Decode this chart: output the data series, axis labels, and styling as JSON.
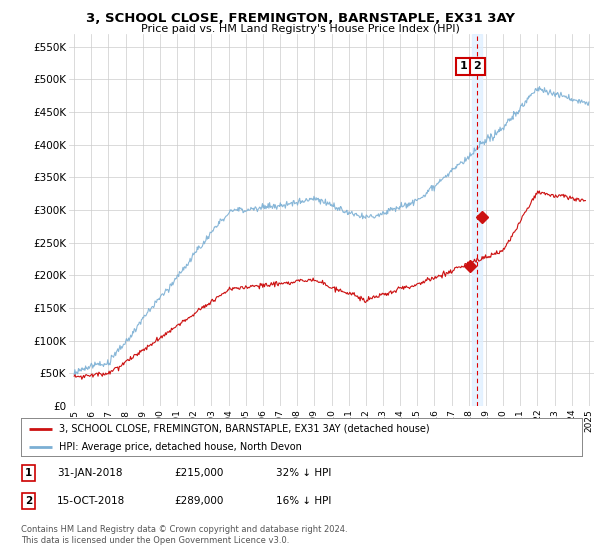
{
  "title": "3, SCHOOL CLOSE, FREMINGTON, BARNSTAPLE, EX31 3AY",
  "subtitle": "Price paid vs. HM Land Registry's House Price Index (HPI)",
  "ylim": [
    0,
    570000
  ],
  "yticks": [
    0,
    50000,
    100000,
    150000,
    200000,
    250000,
    300000,
    350000,
    400000,
    450000,
    500000,
    550000
  ],
  "ytick_labels": [
    "£0",
    "£50K",
    "£100K",
    "£150K",
    "£200K",
    "£250K",
    "£300K",
    "£350K",
    "£400K",
    "£450K",
    "£500K",
    "£550K"
  ],
  "sale1_date": 2018.08,
  "sale1_price": 215000,
  "sale2_date": 2018.79,
  "sale2_price": 289000,
  "vline_x": 2018.5,
  "hpi_color": "#7bafd4",
  "price_color": "#cc1111",
  "vline_color": "#dd0000",
  "vband_color": "#ddeeff",
  "background_color": "#ffffff",
  "grid_color": "#cccccc",
  "legend_label1": "3, SCHOOL CLOSE, FREMINGTON, BARNSTAPLE, EX31 3AY (detached house)",
  "legend_label2": "HPI: Average price, detached house, North Devon",
  "table_row1": [
    "1",
    "31-JAN-2018",
    "£215,000",
    "32% ↓ HPI"
  ],
  "table_row2": [
    "2",
    "15-OCT-2018",
    "£289,000",
    "16% ↓ HPI"
  ],
  "footnote": "Contains HM Land Registry data © Crown copyright and database right 2024.\nThis data is licensed under the Open Government Licence v3.0.",
  "xstart": 1994.7,
  "xend": 2025.3
}
